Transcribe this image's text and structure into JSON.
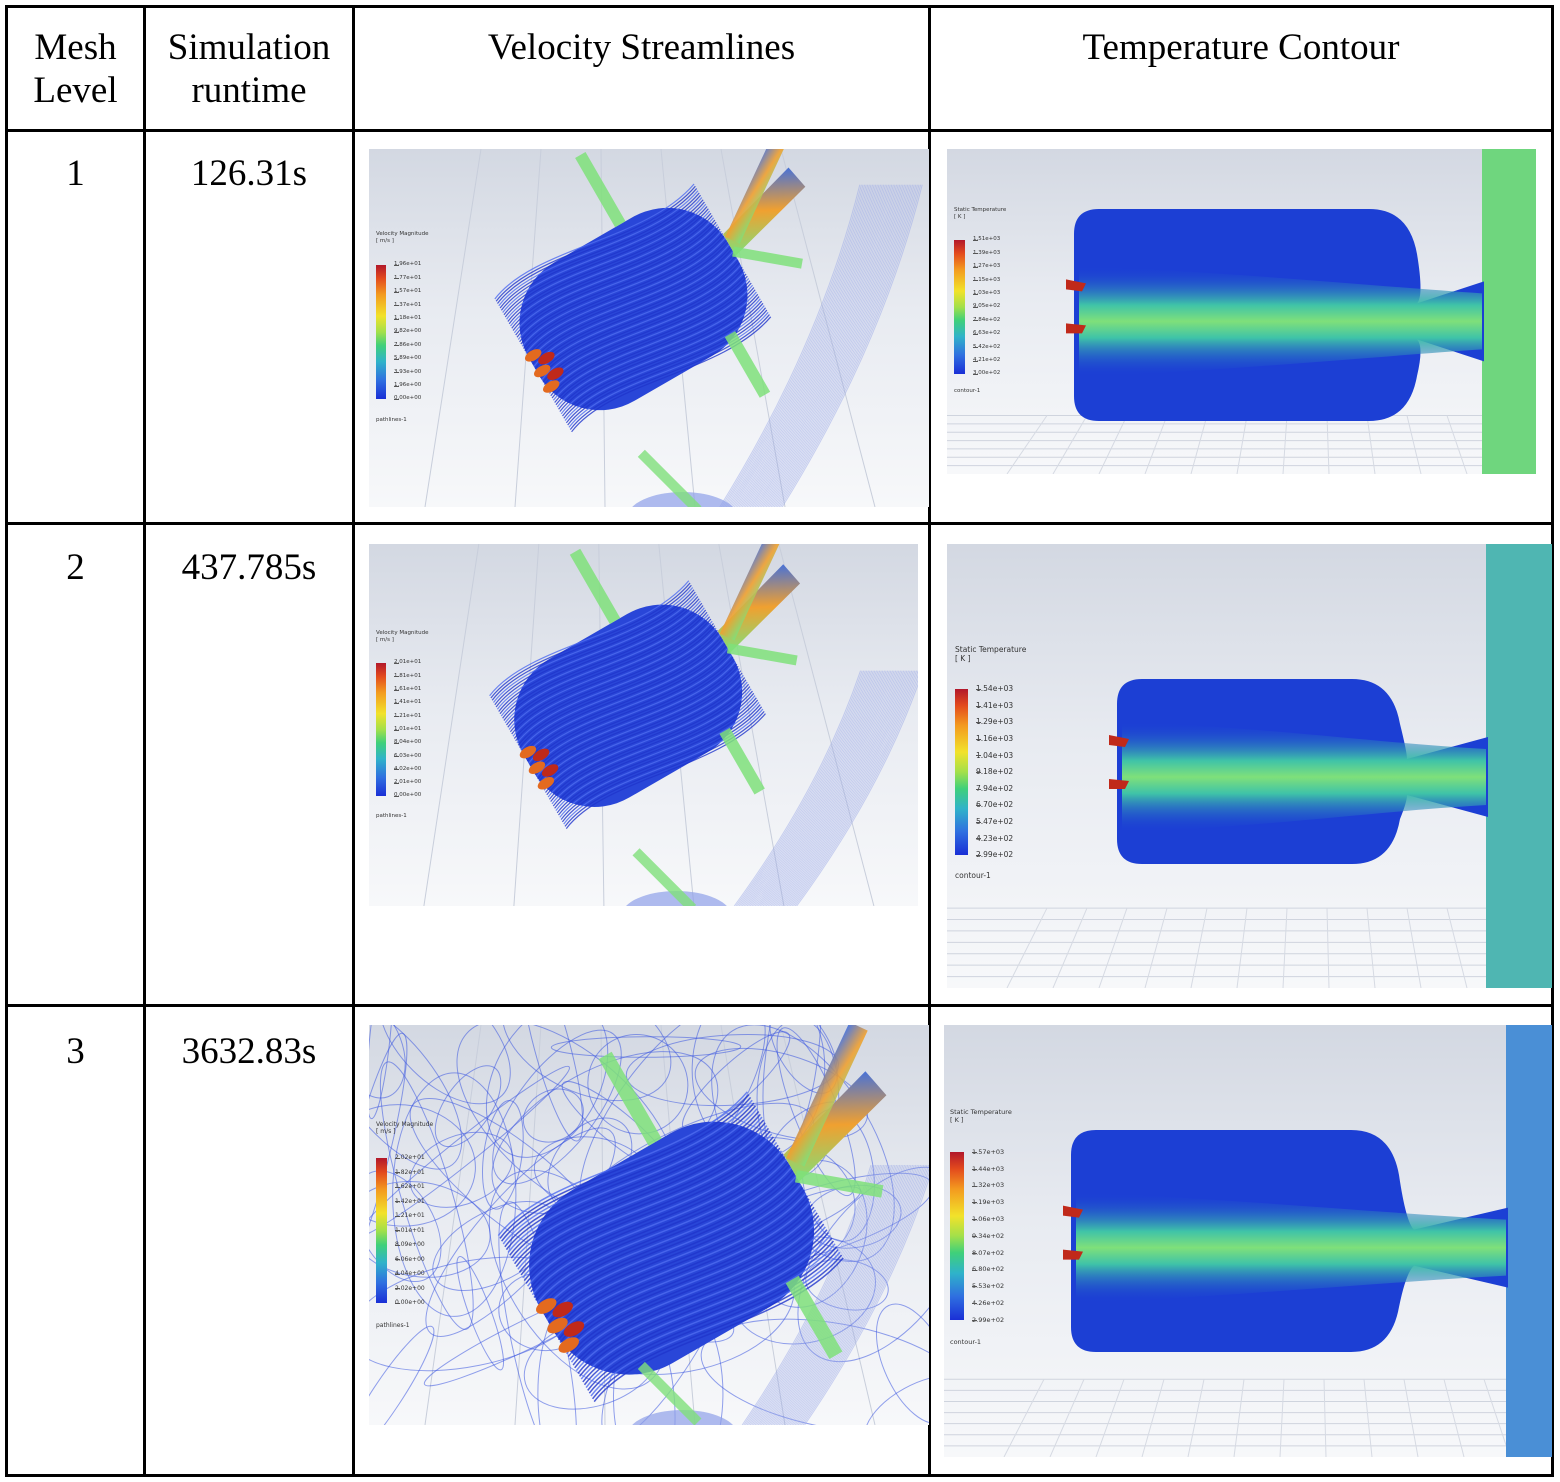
{
  "table": {
    "headers": {
      "mesh_level": "Mesh\nLevel",
      "runtime": "Simulation\nruntime",
      "velocity": "Velocity Streamlines",
      "temperature": "Temperature Contour"
    },
    "rows": [
      {
        "level": "1",
        "runtime": "126.31s",
        "velocity": {
          "title": "Velocity Magnitude\n[ m/s ]",
          "values": [
            "1.96e+01",
            "1.77e+01",
            "1.57e+01",
            "1.37e+01",
            "1.18e+01",
            "9.82e+00",
            "7.86e+00",
            "5.89e+00",
            "3.93e+00",
            "1.96e+00",
            "0.00e+00"
          ],
          "footer": "pathlines-1"
        },
        "temperature": {
          "title": "Static Temperature\n[ K ]",
          "values": [
            "1.51e+03",
            "1.39e+03",
            "1.27e+03",
            "1.15e+03",
            "1.03e+03",
            "9.05e+02",
            "7.84e+02",
            "6.63e+02",
            "5.42e+02",
            "4.21e+02",
            "3.00e+02"
          ],
          "footer": "contour-1"
        }
      },
      {
        "level": "2",
        "runtime": "437.785s",
        "velocity": {
          "title": "Velocity Magnitude\n[ m/s ]",
          "values": [
            "2.01e+01",
            "1.81e+01",
            "1.61e+01",
            "1.41e+01",
            "1.21e+01",
            "1.01e+01",
            "8.04e+00",
            "6.03e+00",
            "4.02e+00",
            "2.01e+00",
            "0.00e+00"
          ],
          "footer": "pathlines-1"
        },
        "temperature": {
          "title": "Static Temperature\n[ K ]",
          "values": [
            "1.54e+03",
            "1.41e+03",
            "1.29e+03",
            "1.16e+03",
            "1.04e+03",
            "9.18e+02",
            "7.94e+02",
            "6.70e+02",
            "5.47e+02",
            "4.23e+02",
            "2.99e+02"
          ],
          "footer": "contour-1"
        }
      },
      {
        "level": "3",
        "runtime": "3632.83s",
        "velocity": {
          "title": "Velocity Magnitude\n[ m/s ]",
          "values": [
            "2.02e+01",
            "1.82e+01",
            "1.62e+01",
            "1.42e+01",
            "1.21e+01",
            "1.01e+01",
            "8.09e+00",
            "6.06e+00",
            "4.04e+00",
            "2.02e+00",
            "0.00e+00"
          ],
          "footer": "pathlines-1"
        },
        "temperature": {
          "title": "Static Temperature\n[ K ]",
          "values": [
            "1.57e+03",
            "1.44e+03",
            "1.32e+03",
            "1.19e+03",
            "1.06e+03",
            "9.34e+02",
            "8.07e+02",
            "6.80e+02",
            "5.53e+02",
            "4.26e+02",
            "2.99e+02"
          ],
          "footer": "contour-1"
        }
      }
    ]
  },
  "colors": {
    "border": "#000000",
    "chamber_blue": "#1c3fd4",
    "plume_green": "#7fe07a",
    "injector_red": "#c0291a",
    "streamline_blue": "#2a4de0",
    "outlet_green": "#6fd67e",
    "outlet_teal": "#4fb6b2",
    "outlet_blue": "#4a8fd6"
  }
}
